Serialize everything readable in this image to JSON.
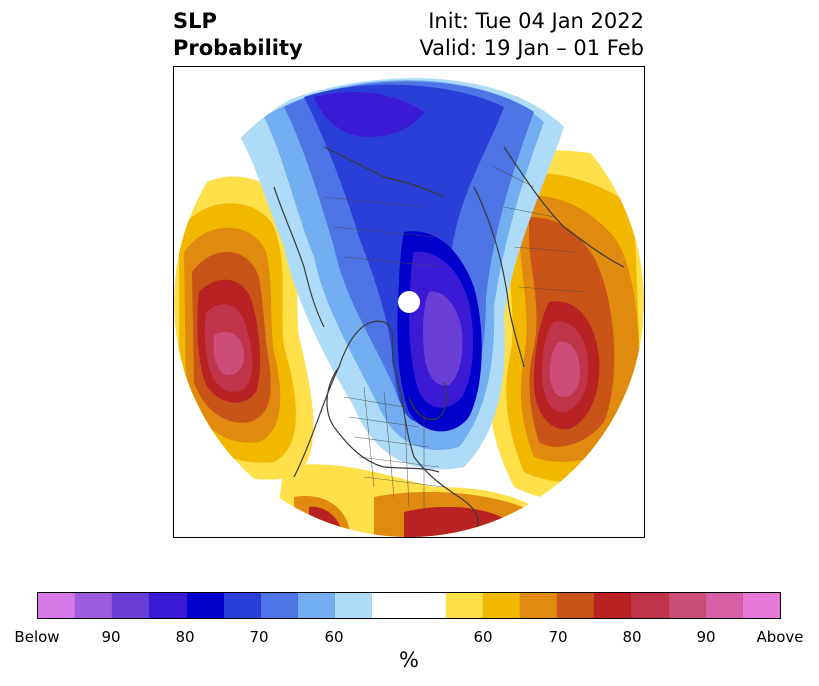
{
  "header": {
    "left_line1": "SLP",
    "left_line2": "Probability",
    "right_line1": "Init: Tue 04 Jan 2022",
    "right_line2": "Valid: 19 Jan – 01 Feb"
  },
  "map": {
    "projection": "north polar stereographic",
    "field": "sea level pressure probability"
  },
  "colorbar": {
    "unit_label": "%",
    "tick_labels": [
      "Below",
      "90",
      "80",
      "70",
      "60",
      "",
      "60",
      "70",
      "80",
      "90",
      "Above"
    ],
    "below_colors": [
      "#d879e8",
      "#9d5ce0",
      "#6a3fd8",
      "#3a1ad4",
      "#0000cc",
      "#2a3fd8",
      "#4f74e6",
      "#74aef2",
      "#aedcf8"
    ],
    "neutral_color": "#ffffff",
    "above_colors": [
      "#ffe04a",
      "#f2b800",
      "#e08a10",
      "#c85418",
      "#b82222",
      "#c0344a",
      "#cc4c7a",
      "#d85ea6",
      "#e878d8"
    ]
  }
}
